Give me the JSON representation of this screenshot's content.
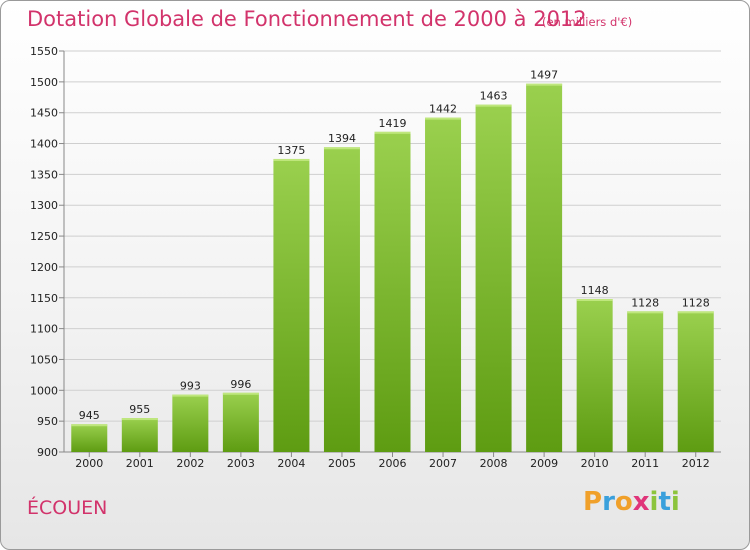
{
  "title": "Dotation Globale de Fonctionnement de 2000 à 2012",
  "subtitle": "(en milliers d'€)",
  "town": "ÉCOUEN",
  "logo": {
    "text": "Proxiti",
    "letters": [
      {
        "ch": "P",
        "color": "#f0a02a"
      },
      {
        "ch": "r",
        "color": "#3aa0dc"
      },
      {
        "ch": "o",
        "color": "#f0a02a"
      },
      {
        "ch": "x",
        "color": "#e0357a"
      },
      {
        "ch": "i",
        "color": "#8cc43c"
      },
      {
        "ch": "t",
        "color": "#3aa0dc"
      },
      {
        "ch": "i",
        "color": "#8cc43c"
      }
    ]
  },
  "colors": {
    "accent": "#d2336b",
    "bar_top": "#9ad04e",
    "bar_bottom": "#5e9c12",
    "grid": "#cfcfcf"
  },
  "chart_data": {
    "type": "bar",
    "title": "Dotation Globale de Fonctionnement de 2000 à 2012",
    "subtitle": "(en milliers d'€)",
    "xlabel": "",
    "ylabel": "",
    "categories": [
      "2000",
      "2001",
      "2002",
      "2003",
      "2004",
      "2005",
      "2006",
      "2007",
      "2008",
      "2009",
      "2010",
      "2011",
      "2012"
    ],
    "values": [
      945,
      955,
      993,
      996,
      1375,
      1394,
      1419,
      1442,
      1463,
      1497,
      1148,
      1128,
      1128
    ],
    "ylim": [
      900,
      1550
    ],
    "yticks": [
      900,
      950,
      1000,
      1050,
      1100,
      1150,
      1200,
      1250,
      1300,
      1350,
      1400,
      1450,
      1500,
      1550
    ],
    "grid": true,
    "data_labels": true,
    "legend": "none"
  }
}
